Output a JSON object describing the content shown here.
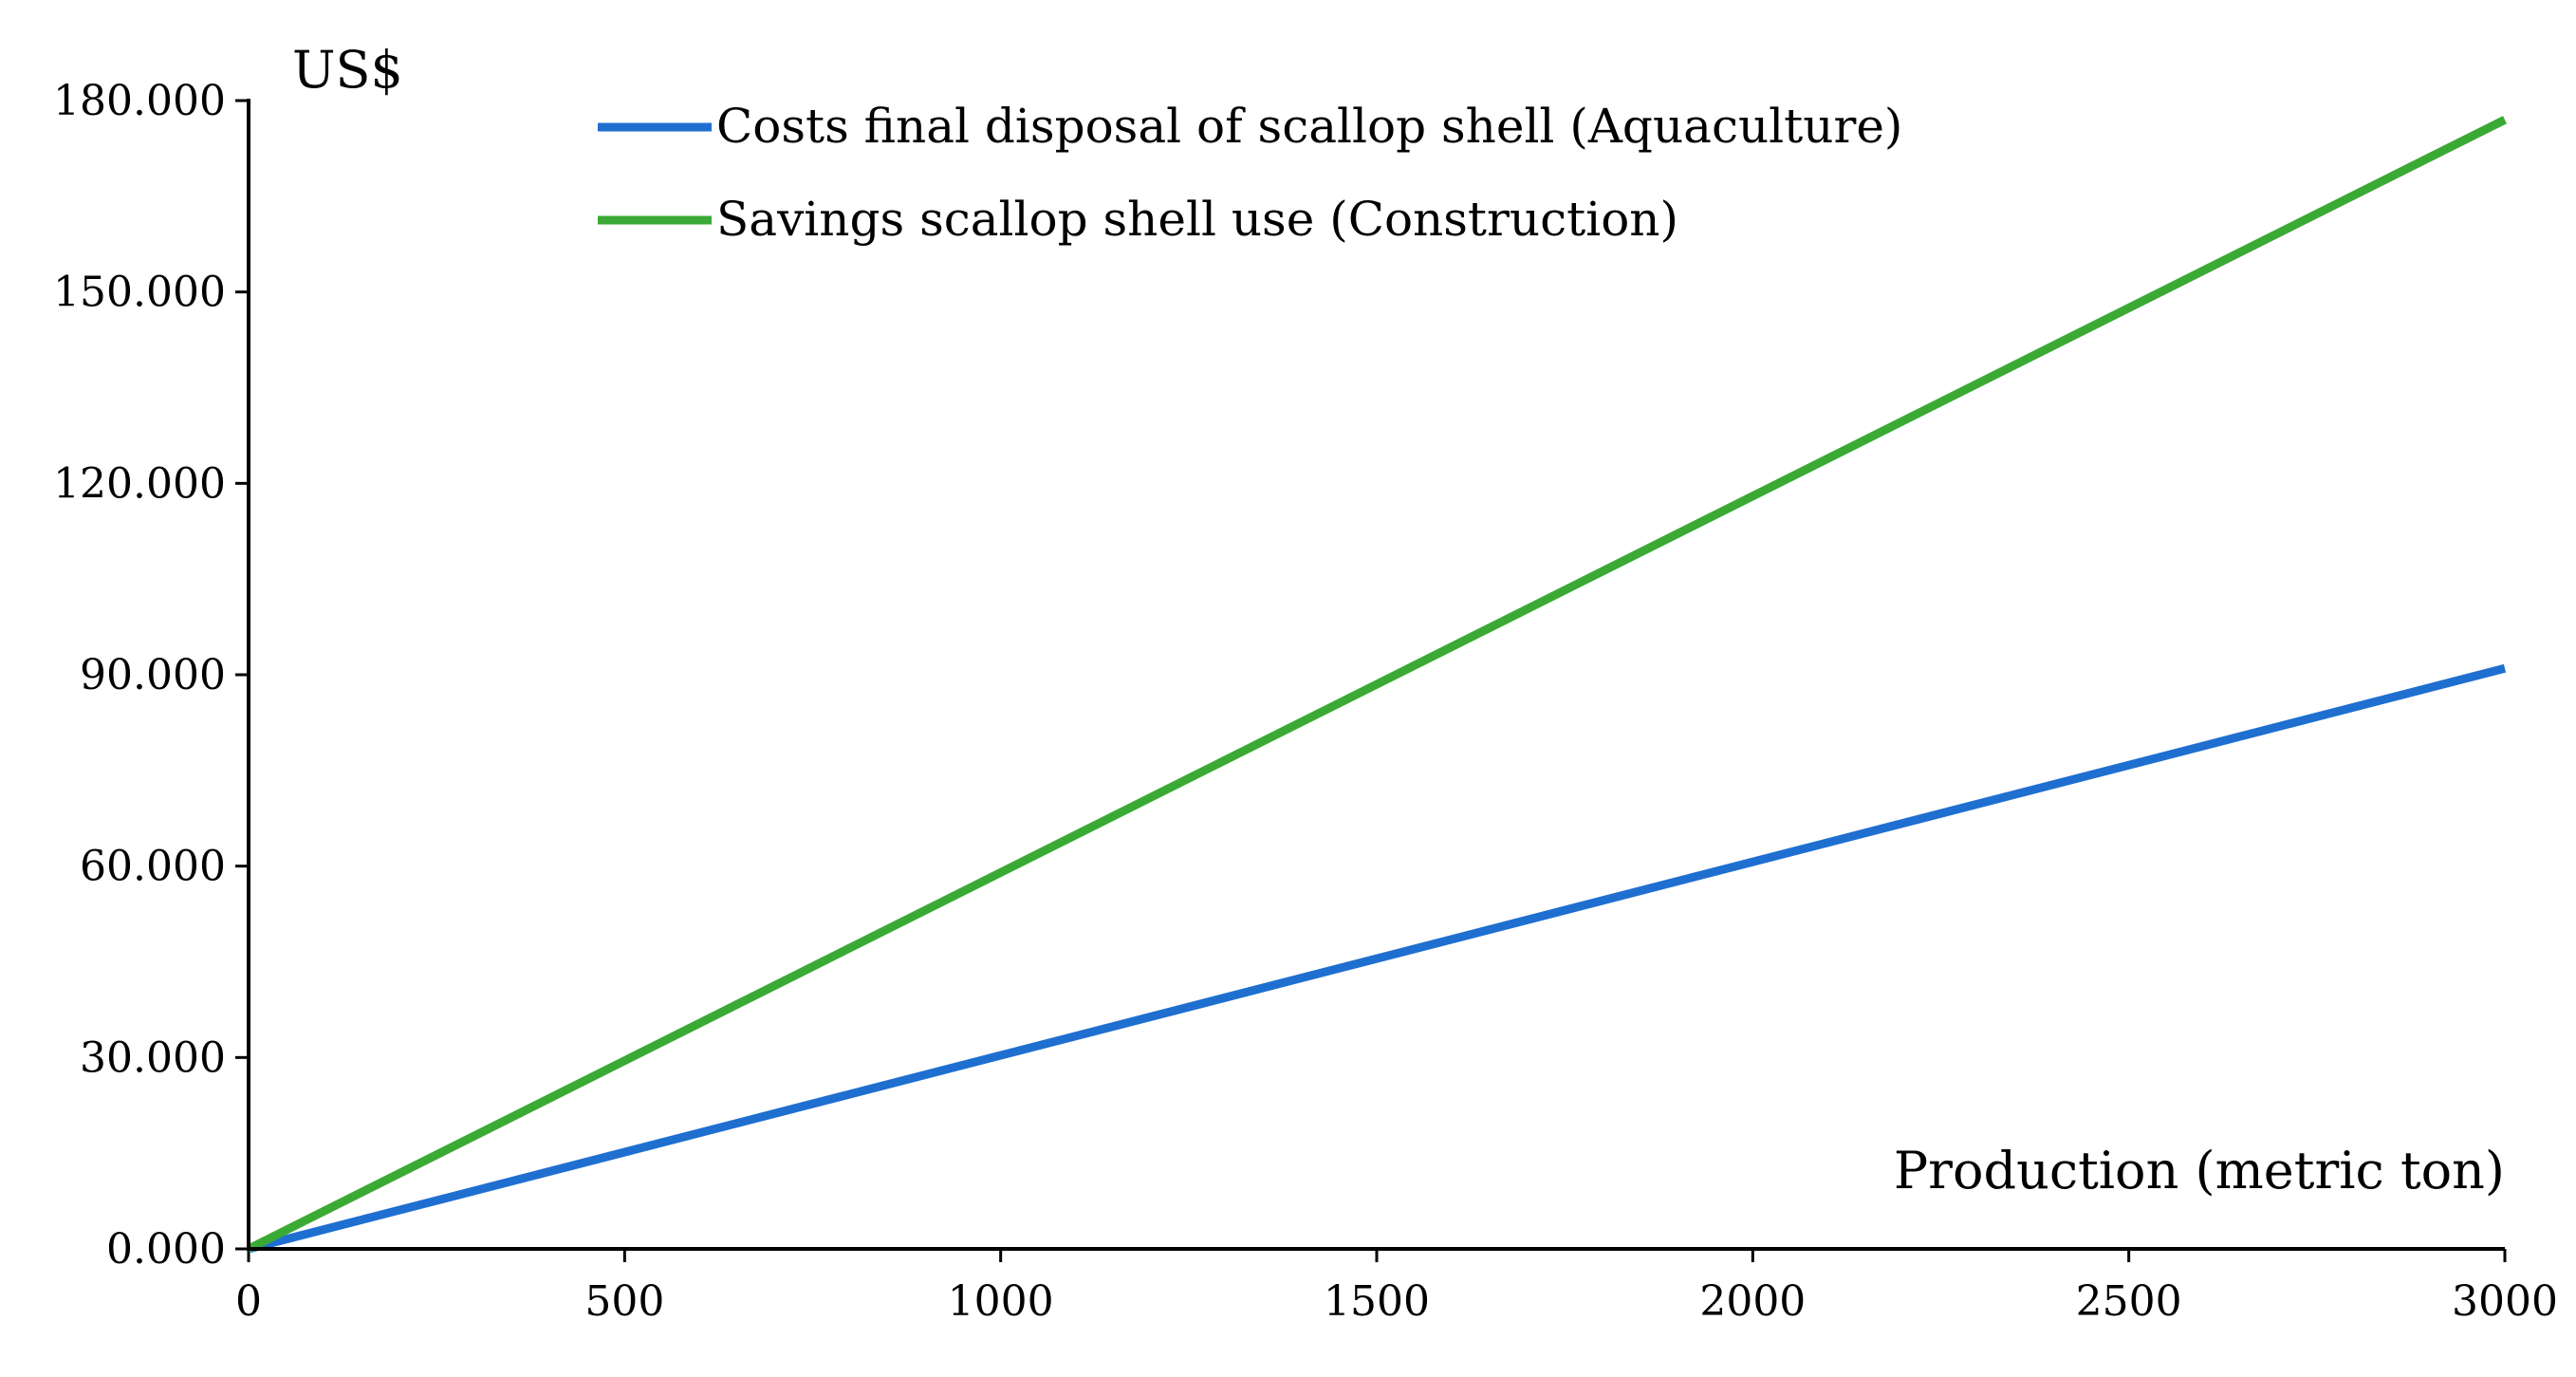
{
  "chart_data": {
    "type": "line",
    "title": "",
    "xlabel": "Production (metric ton)",
    "ylabel": "US$",
    "xlim": [
      0,
      3000
    ],
    "ylim": [
      0,
      180
    ],
    "x_ticks": [
      0,
      500,
      1000,
      1500,
      2000,
      2500,
      3000
    ],
    "x_tick_labels": [
      "0",
      "500",
      "1000",
      "1500",
      "2000",
      "2500",
      "3000"
    ],
    "y_ticks": [
      0,
      30,
      60,
      90,
      120,
      150,
      180
    ],
    "y_tick_labels": [
      "0.000",
      "30.000",
      "60.000",
      "90.000",
      "120.000",
      "150.000",
      "180.000"
    ],
    "grid": false,
    "legend_position": "top-center",
    "series": [
      {
        "name": "Costs final disposal of scallop shell (Aquaculture)",
        "color": "#1f6fd0",
        "x": [
          0,
          3000
        ],
        "values": [
          0,
          91
        ]
      },
      {
        "name": "Savings scallop shell use (Construction)",
        "color": "#3aaa35",
        "x": [
          0,
          3000
        ],
        "values": [
          0,
          177
        ]
      }
    ]
  }
}
